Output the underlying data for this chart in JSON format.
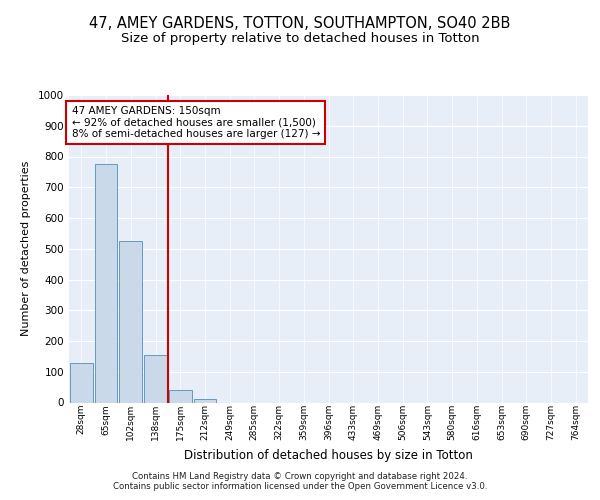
{
  "title1": "47, AMEY GARDENS, TOTTON, SOUTHAMPTON, SO40 2BB",
  "title2": "Size of property relative to detached houses in Totton",
  "xlabel": "Distribution of detached houses by size in Totton",
  "ylabel": "Number of detached properties",
  "bar_labels": [
    "28sqm",
    "65sqm",
    "102sqm",
    "138sqm",
    "175sqm",
    "212sqm",
    "249sqm",
    "285sqm",
    "322sqm",
    "359sqm",
    "396sqm",
    "433sqm",
    "469sqm",
    "506sqm",
    "543sqm",
    "580sqm",
    "616sqm",
    "653sqm",
    "690sqm",
    "727sqm",
    "764sqm"
  ],
  "bar_values": [
    130,
    775,
    525,
    155,
    40,
    10,
    0,
    0,
    0,
    0,
    0,
    0,
    0,
    0,
    0,
    0,
    0,
    0,
    0,
    0,
    0
  ],
  "bar_color": "#c9d9ea",
  "bar_edgecolor": "#6699bb",
  "vline_x": 3.5,
  "vline_color": "#cc0000",
  "ylim": [
    0,
    1000
  ],
  "yticks": [
    0,
    100,
    200,
    300,
    400,
    500,
    600,
    700,
    800,
    900,
    1000
  ],
  "annotation_line1": "47 AMEY GARDENS: 150sqm",
  "annotation_line2": "← 92% of detached houses are smaller (1,500)",
  "annotation_line3": "8% of semi-detached houses are larger (127) →",
  "annotation_boxcolor": "white",
  "annotation_edgecolor": "#cc0000",
  "bg_color": "#e8eef8",
  "footer_text": "Contains HM Land Registry data © Crown copyright and database right 2024.\nContains public sector information licensed under the Open Government Licence v3.0.",
  "grid_color": "#ffffff",
  "title1_fontsize": 10.5,
  "title2_fontsize": 9.5
}
